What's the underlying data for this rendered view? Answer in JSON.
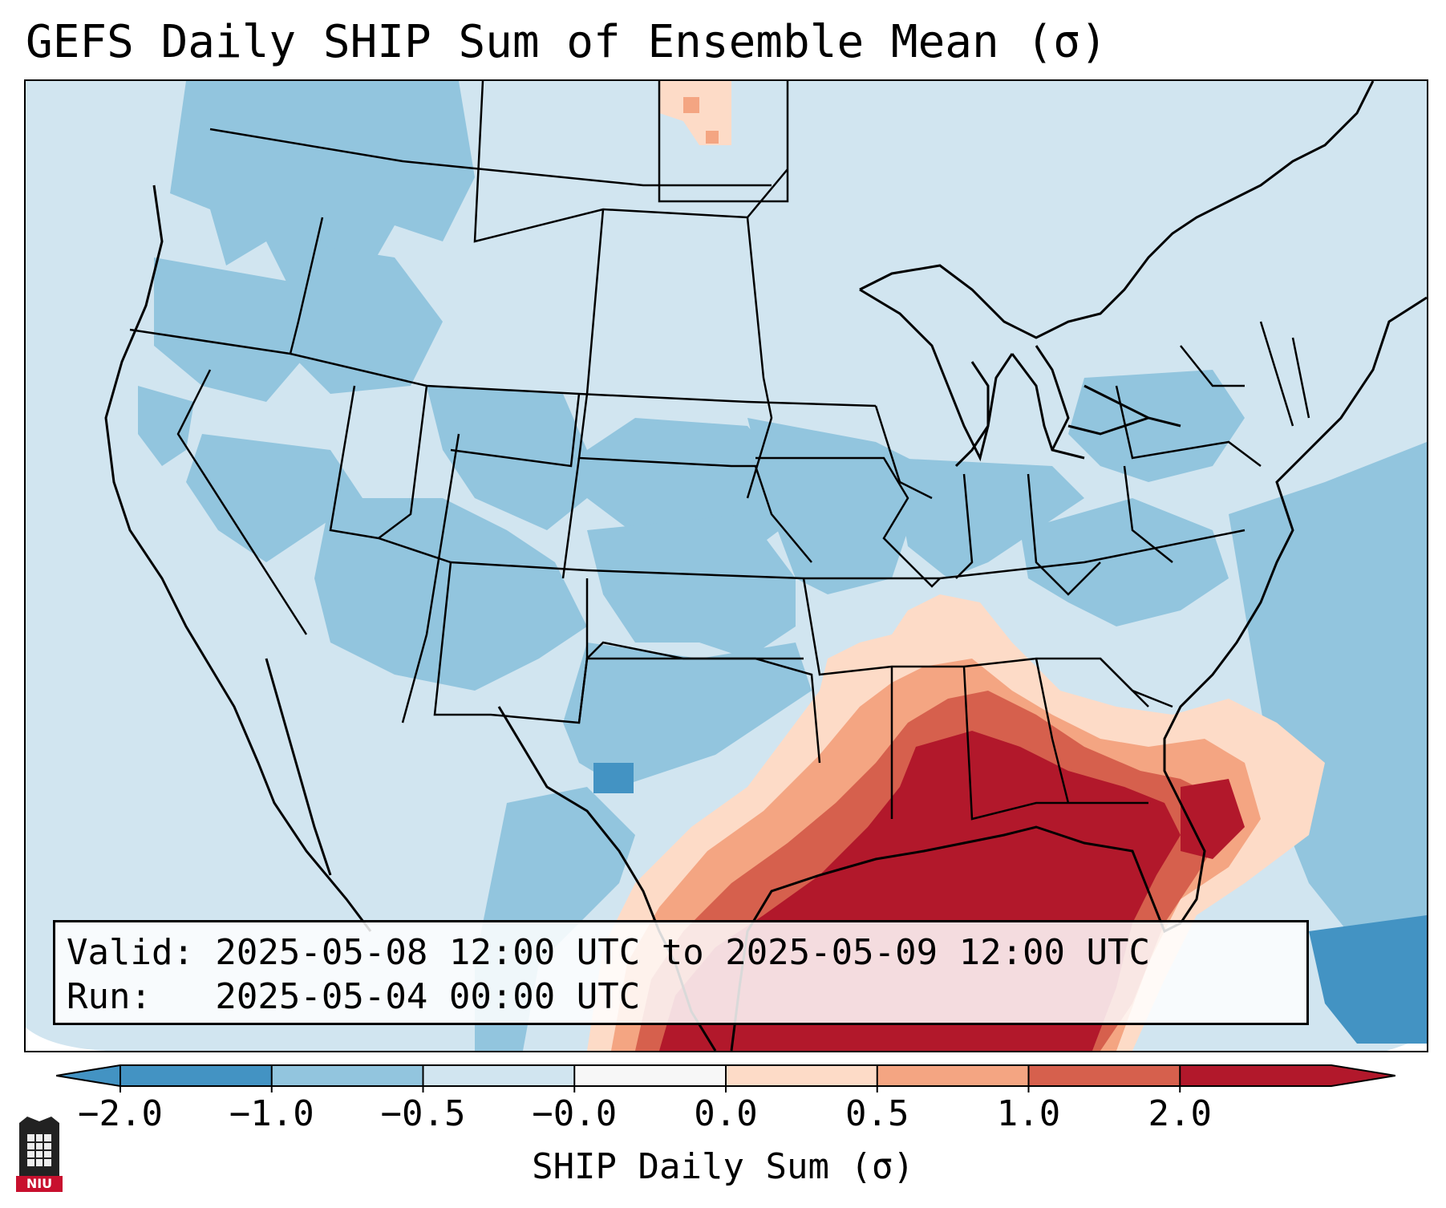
{
  "title": "GEFS Daily SHIP Sum of Ensemble Mean (σ)",
  "info": {
    "valid_line": "Valid: 2025-05-08 12:00 UTC to 2025-05-09 12:00 UTC",
    "run_line": "Run:   2025-05-04 00:00 UTC"
  },
  "colorbar": {
    "label": "SHIP Daily Sum (σ)",
    "ticks": [
      "−2.0",
      "−1.0",
      "−0.5",
      "−0.0",
      "0.0",
      "0.5",
      "1.0",
      "2.0"
    ],
    "colors": [
      "#4393c3",
      "#92c5de",
      "#d1e5f0",
      "#f7f7f7",
      "#fddbc7",
      "#f4a582",
      "#d6604d",
      "#b2182b"
    ],
    "extend": "both"
  },
  "map": {
    "region": "Contiguous United States",
    "background_color": "#d3e6f1",
    "high_anomaly_region": "Gulf Coast",
    "high_anomaly_color": "#b2182b"
  },
  "logo": {
    "text": "NIU",
    "color": "#c8102e"
  }
}
